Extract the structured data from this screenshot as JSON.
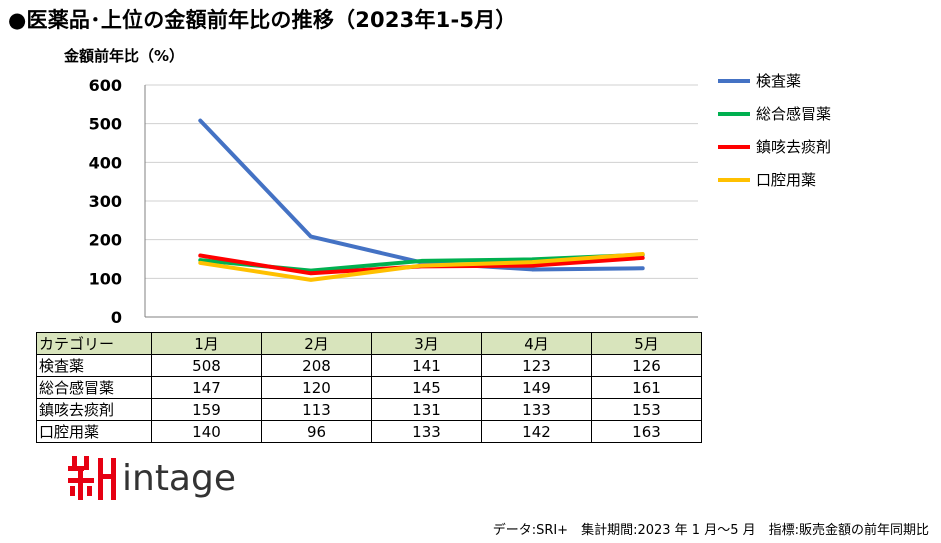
{
  "title": "●医薬品･上位の金額前年比の推移（2023年1-5月）",
  "footer": "データ:SRI+　集計期間:2023 年 1 月～5 月　指標:販売金額の前年同期比",
  "logo_text": "intage",
  "chart_data": {
    "type": "line",
    "ylabel": "金額前年比（%）",
    "ylim": [
      0,
      600
    ],
    "yticks": [
      0,
      100,
      200,
      300,
      400,
      500,
      600
    ],
    "grid": true,
    "legend_position": "right",
    "categories": [
      "1月",
      "2月",
      "3月",
      "4月",
      "5月"
    ],
    "series": [
      {
        "name": "検査薬",
        "color": "#4472c4",
        "values": [
          508,
          208,
          141,
          123,
          126
        ]
      },
      {
        "name": "総合感冒薬",
        "color": "#00b050",
        "values": [
          147,
          120,
          145,
          149,
          161
        ]
      },
      {
        "name": "鎮咳去痰剤",
        "color": "#ff0000",
        "values": [
          159,
          113,
          131,
          133,
          153
        ]
      },
      {
        "name": "口腔用薬",
        "color": "#ffc000",
        "values": [
          140,
          96,
          133,
          142,
          163
        ]
      }
    ],
    "table_header": "カテゴリー"
  }
}
